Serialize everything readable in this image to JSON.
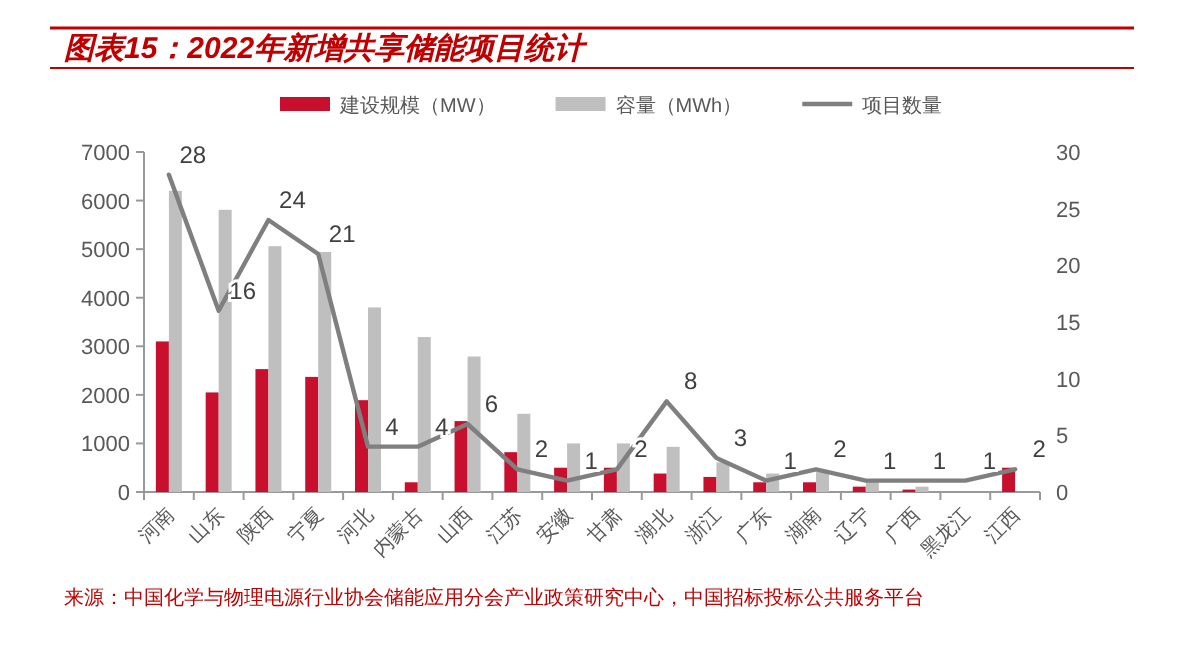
{
  "chart_data": {
    "type": "bar",
    "title": "图表15：2022年新增共享储能项目统计",
    "categories": [
      "河南",
      "山东",
      "陕西",
      "宁夏",
      "河北",
      "内蒙古",
      "山西",
      "江苏",
      "安徽",
      "甘肃",
      "湖北",
      "浙江",
      "广东",
      "湖南",
      "辽宁",
      "广西",
      "黑龙江",
      "江西"
    ],
    "series": [
      {
        "name": "建设规模（MW）",
        "color": "#c8102e",
        "values": [
          3100,
          2050,
          2530,
          2370,
          1890,
          200,
          1460,
          820,
          500,
          500,
          380,
          310,
          200,
          200,
          110,
          50,
          0,
          500
        ]
      },
      {
        "name": "容量（MWh）",
        "color": "#bfbfbf",
        "values": [
          6200,
          5810,
          5060,
          4940,
          3800,
          3190,
          2790,
          1610,
          1000,
          1000,
          930,
          610,
          380,
          410,
          230,
          110,
          0,
          0
        ]
      },
      {
        "name": "项目数量",
        "type": "line",
        "axis": "y2",
        "color": "#7f7f7f",
        "values": [
          28,
          16,
          24,
          21,
          4,
          4,
          6,
          2,
          1,
          2,
          8,
          3,
          1,
          2,
          1,
          1,
          1,
          2
        ],
        "value_labels": [
          "28",
          "16",
          "24",
          "21",
          "4",
          "4",
          "6",
          "2",
          "1",
          "2",
          "8",
          "3",
          "1",
          "2",
          "1",
          "1",
          "1",
          "2"
        ]
      }
    ],
    "ylim": [
      0,
      7000
    ],
    "yticks": [
      0,
      1000,
      2000,
      3000,
      4000,
      5000,
      6000,
      7000
    ],
    "y2lim": [
      0,
      30
    ],
    "y2ticks": [
      0,
      5,
      10,
      15,
      20,
      25,
      30
    ],
    "legend": "top",
    "marker": "none",
    "line_style": "solid",
    "annotations": [
      "来源：中国化学与物理电源行业协会储能应用分会产业政策研究中心，中国招标投标公共服务平台"
    ]
  }
}
